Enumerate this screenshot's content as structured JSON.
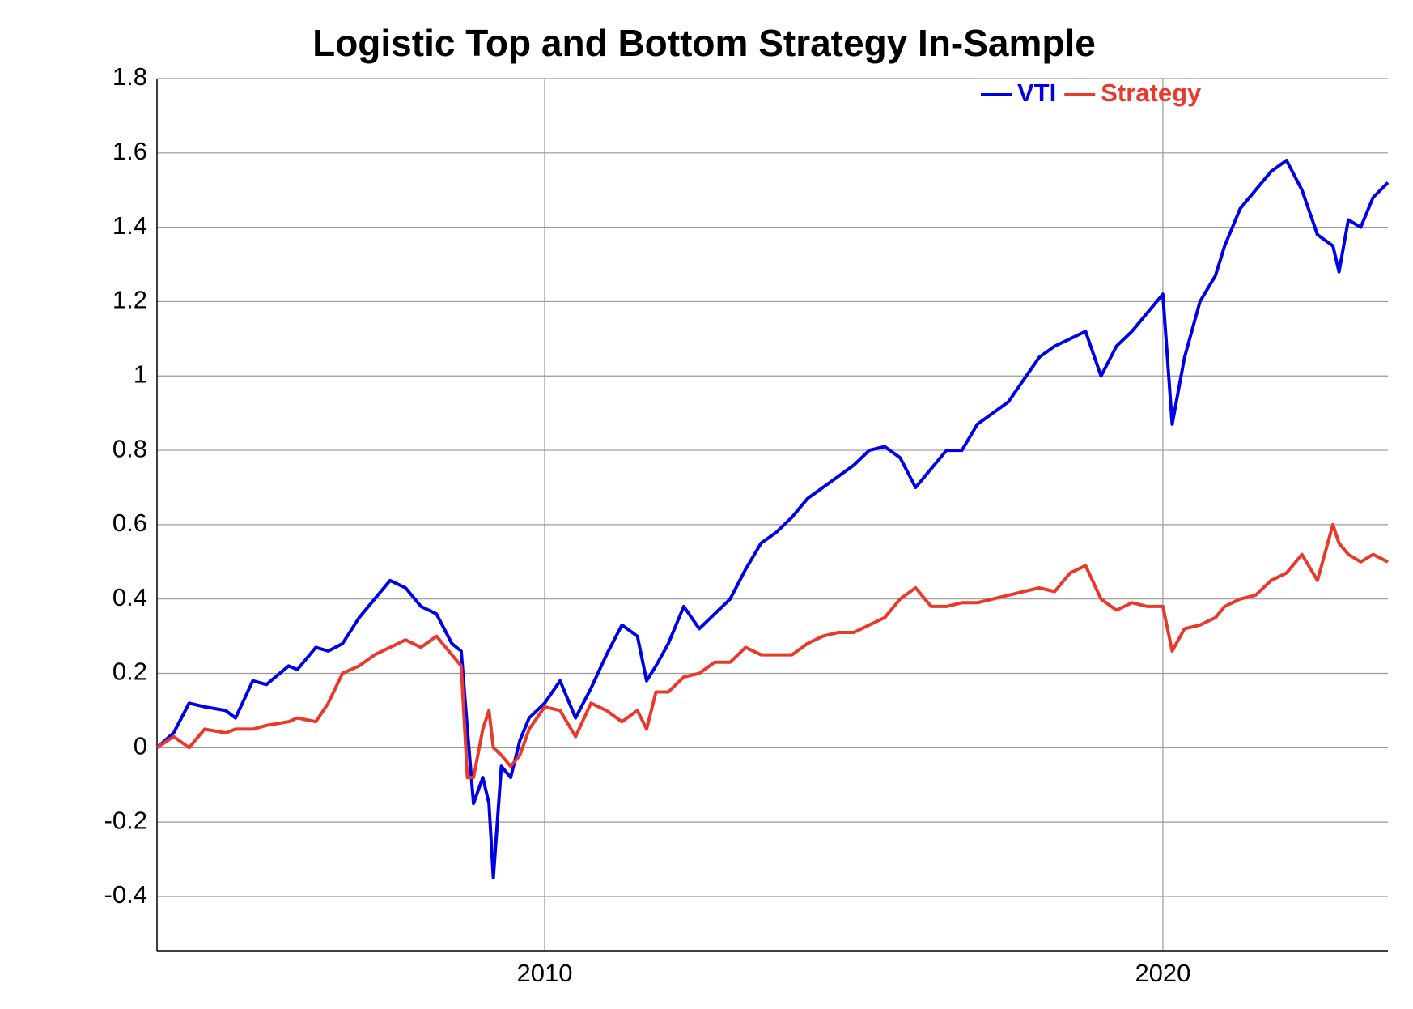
{
  "chart_data": {
    "type": "line",
    "title": "Logistic Top and Bottom Strategy In-Sample",
    "x": [
      2003.73,
      2004.0,
      2004.25,
      2004.5,
      2004.84,
      2005.0,
      2005.28,
      2005.5,
      2005.86,
      2006.0,
      2006.3,
      2006.5,
      2006.73,
      2007.0,
      2007.25,
      2007.5,
      2007.75,
      2008.0,
      2008.25,
      2008.5,
      2008.65,
      2008.75,
      2008.85,
      2009.0,
      2009.1,
      2009.17,
      2009.3,
      2009.45,
      2009.6,
      2009.75,
      2010.0,
      2010.25,
      2010.5,
      2010.75,
      2011.0,
      2011.25,
      2011.5,
      2011.65,
      2011.8,
      2012.0,
      2012.25,
      2012.5,
      2012.75,
      2013.0,
      2013.25,
      2013.5,
      2013.75,
      2014.0,
      2014.25,
      2014.5,
      2014.75,
      2015.0,
      2015.25,
      2015.5,
      2015.75,
      2016.0,
      2016.25,
      2016.5,
      2016.75,
      2017.0,
      2017.5,
      2018.0,
      2018.25,
      2018.5,
      2018.75,
      2019.0,
      2019.25,
      2019.5,
      2019.75,
      2020.0,
      2020.15,
      2020.35,
      2020.6,
      2020.85,
      2021.0,
      2021.25,
      2021.5,
      2021.75,
      2022.0,
      2022.25,
      2022.5,
      2022.75,
      2022.85,
      2023.0,
      2023.2,
      2023.4,
      2023.64
    ],
    "series": [
      {
        "name": "VTI",
        "color": "#0000e6",
        "values": [
          0.0,
          0.04,
          0.12,
          0.11,
          0.1,
          0.08,
          0.18,
          0.17,
          0.22,
          0.21,
          0.27,
          0.26,
          0.28,
          0.35,
          0.4,
          0.45,
          0.43,
          0.38,
          0.36,
          0.28,
          0.26,
          0.05,
          -0.15,
          -0.08,
          -0.15,
          -0.35,
          -0.05,
          -0.08,
          0.02,
          0.08,
          0.12,
          0.18,
          0.08,
          0.16,
          0.25,
          0.33,
          0.3,
          0.18,
          0.22,
          0.28,
          0.38,
          0.32,
          0.36,
          0.4,
          0.48,
          0.55,
          0.58,
          0.62,
          0.67,
          0.7,
          0.73,
          0.76,
          0.8,
          0.81,
          0.78,
          0.7,
          0.75,
          0.8,
          0.8,
          0.87,
          0.93,
          1.05,
          1.08,
          1.1,
          1.12,
          1.0,
          1.08,
          1.12,
          1.17,
          1.22,
          0.87,
          1.05,
          1.2,
          1.27,
          1.35,
          1.45,
          1.5,
          1.55,
          1.58,
          1.5,
          1.38,
          1.35,
          1.28,
          1.42,
          1.4,
          1.48,
          1.52
        ]
      },
      {
        "name": "Strategy",
        "color": "#e8392b",
        "values": [
          0.0,
          0.03,
          0.0,
          0.05,
          0.04,
          0.05,
          0.05,
          0.06,
          0.07,
          0.08,
          0.07,
          0.12,
          0.2,
          0.22,
          0.25,
          0.27,
          0.29,
          0.27,
          0.3,
          0.25,
          0.22,
          -0.08,
          -0.08,
          0.05,
          0.1,
          0.0,
          -0.02,
          -0.05,
          -0.02,
          0.05,
          0.11,
          0.1,
          0.03,
          0.12,
          0.1,
          0.07,
          0.1,
          0.05,
          0.15,
          0.15,
          0.19,
          0.2,
          0.23,
          0.23,
          0.27,
          0.25,
          0.25,
          0.25,
          0.28,
          0.3,
          0.31,
          0.31,
          0.33,
          0.35,
          0.4,
          0.43,
          0.38,
          0.38,
          0.39,
          0.39,
          0.41,
          0.43,
          0.42,
          0.47,
          0.49,
          0.4,
          0.37,
          0.39,
          0.38,
          0.38,
          0.26,
          0.32,
          0.33,
          0.35,
          0.38,
          0.4,
          0.41,
          0.45,
          0.47,
          0.52,
          0.45,
          0.6,
          0.55,
          0.52,
          0.5,
          0.52,
          0.5
        ]
      }
    ],
    "xlim": [
      2003.73,
      2023.64
    ],
    "xticks": [
      2010,
      2020
    ],
    "ylim": [
      -0.546,
      1.8
    ],
    "yticks": [
      -0.4,
      -0.2,
      0,
      0.2,
      0.4,
      0.6,
      0.8,
      1,
      1.2,
      1.4,
      1.6,
      1.8
    ],
    "grid": true,
    "legend": "top-right"
  }
}
